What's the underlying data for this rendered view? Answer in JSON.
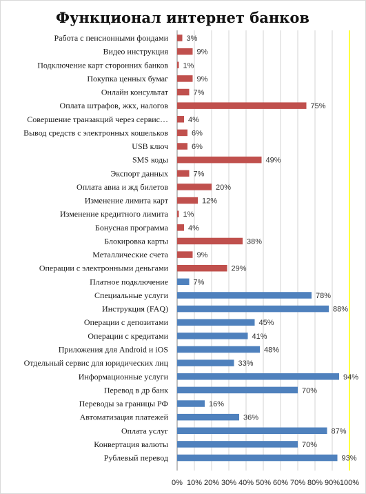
{
  "chart_data": {
    "type": "bar",
    "orientation": "horizontal",
    "title": "Функционал интернет банков",
    "xlabel": "",
    "ylabel": "",
    "xlim": [
      0,
      100
    ],
    "grid": "vertical",
    "legend": "none",
    "colors": {
      "red": "#c0504d",
      "blue": "#4f81bd",
      "grid": "#c8c8c8",
      "limit_line": "#ffff00"
    },
    "ticks": [
      "0%",
      "10%",
      "20%",
      "30%",
      "40%",
      "50%",
      "60%",
      "70%",
      "80%",
      "90%",
      "100%"
    ],
    "bars": [
      {
        "label": "Работа с пенсионными фондами",
        "value": 3,
        "display": "3%",
        "color": "red"
      },
      {
        "label": "Видео инструкция",
        "value": 9,
        "display": "9%",
        "color": "red"
      },
      {
        "label": "Подключение карт сторонних банков",
        "value": 1,
        "display": "1%",
        "color": "red"
      },
      {
        "label": "Покупка ценных бумаг",
        "value": 9,
        "display": "9%",
        "color": "red"
      },
      {
        "label": "Онлайн консультат",
        "value": 7,
        "display": "7%",
        "color": "red"
      },
      {
        "label": "Оплата штрафов, жкх, налогов",
        "value": 75,
        "display": "75%",
        "color": "red"
      },
      {
        "label": "Совершение транзакций через сервис…",
        "value": 4,
        "display": "4%",
        "color": "red"
      },
      {
        "label": "Вывод средств с электронных кошельков",
        "value": 6,
        "display": "6%",
        "color": "red"
      },
      {
        "label": "USB ключ",
        "value": 6,
        "display": "6%",
        "color": "red"
      },
      {
        "label": "SMS коды",
        "value": 49,
        "display": "49%",
        "color": "red"
      },
      {
        "label": "Экспорт данных",
        "value": 7,
        "display": "7%",
        "color": "red"
      },
      {
        "label": "Оплата авиа и жд билетов",
        "value": 20,
        "display": "20%",
        "color": "red"
      },
      {
        "label": "Изменение лимита карт",
        "value": 12,
        "display": "12%",
        "color": "red"
      },
      {
        "label": "Изменение кредитного лимита",
        "value": 1,
        "display": "1%",
        "color": "red"
      },
      {
        "label": "Бонусная программа",
        "value": 4,
        "display": "4%",
        "color": "red"
      },
      {
        "label": "Блокировка карты",
        "value": 38,
        "display": "38%",
        "color": "red"
      },
      {
        "label": "Металлические счета",
        "value": 9,
        "display": "9%",
        "color": "red"
      },
      {
        "label": "Операции с электронными деньгами",
        "value": 29,
        "display": "29%",
        "color": "red"
      },
      {
        "label": "Платное подключение",
        "value": 7,
        "display": "7%",
        "color": "blue"
      },
      {
        "label": "Специальные услуги",
        "value": 78,
        "display": "78%",
        "color": "blue"
      },
      {
        "label": "Инструкция (FAQ)",
        "value": 88,
        "display": "88%",
        "color": "blue"
      },
      {
        "label": "Операции с депозитами",
        "value": 45,
        "display": "45%",
        "color": "blue"
      },
      {
        "label": "Операции с кредитами",
        "value": 41,
        "display": "41%",
        "color": "blue"
      },
      {
        "label": "Приложения для Android и iOS",
        "value": 48,
        "display": "48%",
        "color": "blue"
      },
      {
        "label": "Отдельный сервис для юридических лиц",
        "value": 33,
        "display": "33%",
        "color": "blue"
      },
      {
        "label": "Информационные услуги",
        "value": 94,
        "display": "94%",
        "color": "blue"
      },
      {
        "label": "Перевод в др банк",
        "value": 70,
        "display": "70%",
        "color": "blue"
      },
      {
        "label": "Переводы за границы РФ",
        "value": 16,
        "display": "16%",
        "color": "blue"
      },
      {
        "label": "Автоматизация платежей",
        "value": 36,
        "display": "36%",
        "color": "blue"
      },
      {
        "label": "Оплата услуг",
        "value": 87,
        "display": "87%",
        "color": "blue"
      },
      {
        "label": "Конвертация валюты",
        "value": 70,
        "display": "70%",
        "color": "blue"
      },
      {
        "label": "Рублевый перевод",
        "value": 93,
        "display": "93%",
        "color": "blue"
      }
    ]
  }
}
